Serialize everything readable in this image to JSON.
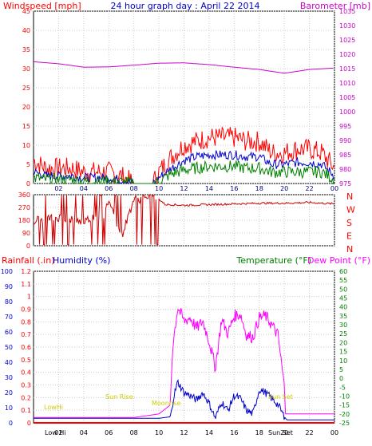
{
  "chart_data": [
    {
      "type": "line",
      "title": "24 hour graph day : April 22 2014",
      "ylabel": "Windspeed [mph]",
      "y2label": "Barometer [mb]",
      "ylim": [
        0,
        45
      ],
      "y2lim": [
        975,
        1035
      ],
      "yticks": [
        "0",
        "5",
        "10",
        "15",
        "20",
        "25",
        "30",
        "35",
        "40",
        "45"
      ],
      "y2ticks": [
        "975",
        "980",
        "985",
        "990",
        "995",
        "1000",
        "1005",
        "1010",
        "1015",
        "1020",
        "1025",
        "1030",
        "1035"
      ],
      "xticks": [
        "02",
        "04",
        "06",
        "08",
        "10",
        "12",
        "14",
        "16",
        "18",
        "20",
        "22",
        "00"
      ],
      "grid": true,
      "colors": {
        "gust": "#ff0000",
        "average": "#0000cc",
        "windrun": "#008000",
        "barometer": "#cc00cc"
      },
      "series": [
        {
          "key": "barometer",
          "axis": "right",
          "color": "#cc00cc",
          "x": [
            0,
            2,
            4,
            6,
            8,
            10,
            12,
            14,
            16,
            18,
            20,
            22,
            24
          ],
          "y": [
            1017.4,
            1016.7,
            1015.5,
            1015.6,
            1016.2,
            1016.9,
            1017.0,
            1016.4,
            1015.5,
            1014.7,
            1013.4,
            1014.7,
            1015.2
          ]
        },
        {
          "key": "gust",
          "axis": "left",
          "color": "#ff0000",
          "x": [
            0,
            1,
            2,
            3,
            4,
            5,
            6,
            7,
            8,
            9,
            9.5,
            10,
            11,
            12,
            13,
            14,
            15,
            16,
            17,
            18,
            19,
            20,
            21,
            22,
            23,
            24
          ],
          "y": [
            6,
            4,
            4,
            4,
            3,
            3,
            3,
            2,
            0,
            0,
            0,
            3,
            7,
            10,
            11,
            12,
            12,
            12,
            11,
            11,
            8,
            8,
            9,
            9,
            8,
            4
          ]
        },
        {
          "key": "average",
          "axis": "left",
          "color": "#0000cc",
          "x": [
            0,
            1,
            2,
            3,
            4,
            5,
            6,
            7,
            8,
            9,
            9.5,
            10,
            11,
            12,
            13,
            14,
            15,
            16,
            17,
            18,
            19,
            20,
            21,
            22,
            23,
            24
          ],
          "y": [
            3,
            2,
            2,
            2,
            1.5,
            1.5,
            1.5,
            1,
            0,
            0,
            0,
            1.5,
            4,
            6,
            7,
            7.5,
            7.5,
            7.5,
            7,
            7,
            5,
            5,
            5.5,
            5.5,
            5,
            2
          ]
        },
        {
          "key": "windrun",
          "axis": "left",
          "color": "#008000",
          "x": [
            0,
            1,
            2,
            3,
            4,
            5,
            6,
            7,
            8,
            9,
            9.5,
            10,
            11,
            12,
            13,
            14,
            15,
            16,
            17,
            18,
            19,
            20,
            21,
            22,
            23,
            24
          ],
          "y": [
            1.5,
            1,
            1,
            1,
            0.5,
            0.5,
            0.5,
            0.5,
            0,
            0,
            0,
            0.5,
            2.5,
            3.5,
            4,
            4.5,
            4.5,
            4.5,
            4,
            4,
            3,
            3,
            3,
            3,
            3,
            1
          ]
        }
      ]
    },
    {
      "type": "line",
      "ylabel": "",
      "ylim": [
        0,
        360
      ],
      "yticks": [
        "0",
        "90",
        "180",
        "270",
        "360"
      ],
      "compass": [
        "N",
        "W",
        "S",
        "E",
        "N"
      ],
      "xticks": [
        "02",
        "04",
        "06",
        "08",
        "10",
        "12",
        "14",
        "16",
        "18",
        "20",
        "22",
        "00"
      ],
      "grid": true,
      "color": "#cc0000",
      "series": [
        {
          "key": "direction",
          "x": [
            0,
            2,
            4,
            5,
            5.5,
            6,
            7,
            8,
            9,
            10,
            10.5,
            11,
            12,
            14,
            16,
            18,
            20,
            22,
            24
          ],
          "y": [
            180,
            200,
            170,
            220,
            160,
            330,
            60,
            330,
            330,
            330,
            290,
            290,
            285,
            290,
            295,
            300,
            300,
            305,
            295
          ]
        }
      ]
    },
    {
      "type": "line",
      "ylabel": "Rainfall (.in)",
      "ylabel2": "Humidity (%)",
      "y2label": "Temperature (°F)",
      "y2label2": "Dew Point (°F)",
      "ylim_rain": [
        0,
        1.2
      ],
      "ylim_humidity": [
        0,
        100
      ],
      "y2lim": [
        -25,
        60
      ],
      "rain_ticks": [
        "0",
        "0.1",
        "0.2",
        "0.3",
        "0.4",
        "0.5",
        "0.6",
        "0.7",
        "0.8",
        "0.9",
        "1",
        "1.1",
        "1.2"
      ],
      "humidity_ticks": [
        "0",
        "10",
        "20",
        "30",
        "40",
        "50",
        "60",
        "70",
        "80",
        "90",
        "100"
      ],
      "temp_ticks": [
        "-25",
        "-20",
        "-15",
        "-10",
        "-5",
        "0",
        "5",
        "10",
        "15",
        "20",
        "25",
        "30",
        "35",
        "40",
        "45",
        "50",
        "55",
        "60"
      ],
      "xticks": [
        "02",
        "04",
        "06",
        "08",
        "10",
        "12",
        "14",
        "16",
        "18",
        "20",
        "22",
        "00"
      ],
      "annotations": [
        "LowHi",
        "Low Hi",
        "Sun Rise",
        "Moonrise",
        "Sun Set",
        "Sun Set"
      ],
      "grid": true,
      "colors": {
        "rainfall": "#ff0000",
        "humidity": "#0000cc",
        "temperature": "#008000",
        "dewpoint": "#ff00ff"
      },
      "series": [
        {
          "key": "temperature_dew",
          "unit": "degF",
          "color": "#ff00ff",
          "x": [
            0,
            4,
            8,
            10,
            10.9,
            11.1,
            11.5,
            12,
            12.5,
            13,
            13.5,
            14,
            14.5,
            15,
            15.5,
            16,
            16.5,
            17,
            17.5,
            18,
            18.5,
            19,
            19.5,
            20,
            20.1,
            21,
            24
          ],
          "y": [
            -22,
            -22,
            -22,
            -20,
            -15,
            18,
            40,
            32,
            34,
            28,
            32,
            21,
            6,
            33,
            25,
            35,
            36,
            24,
            23,
            34,
            35,
            30,
            24,
            -5,
            -20,
            -20,
            -20
          ]
        },
        {
          "key": "humidity",
          "unit": "percent",
          "color": "#0000cc",
          "x": [
            0,
            4,
            8,
            10,
            10.9,
            11.2,
            11.5,
            12,
            12.5,
            13,
            13.5,
            14,
            14.5,
            15,
            15.5,
            16,
            16.5,
            17,
            17.5,
            18,
            18.5,
            19,
            19.5,
            20,
            20.2,
            21,
            24
          ],
          "y": [
            3,
            3,
            3,
            3,
            4,
            18,
            27,
            20,
            18,
            15,
            20,
            13,
            3,
            14,
            8,
            18,
            16,
            8,
            6,
            22,
            20,
            16,
            12,
            4,
            2,
            2,
            2
          ]
        },
        {
          "key": "rainfall",
          "unit": "in",
          "color": "#ff0000",
          "x": [
            0,
            24
          ],
          "y": [
            0,
            0
          ]
        }
      ]
    }
  ]
}
